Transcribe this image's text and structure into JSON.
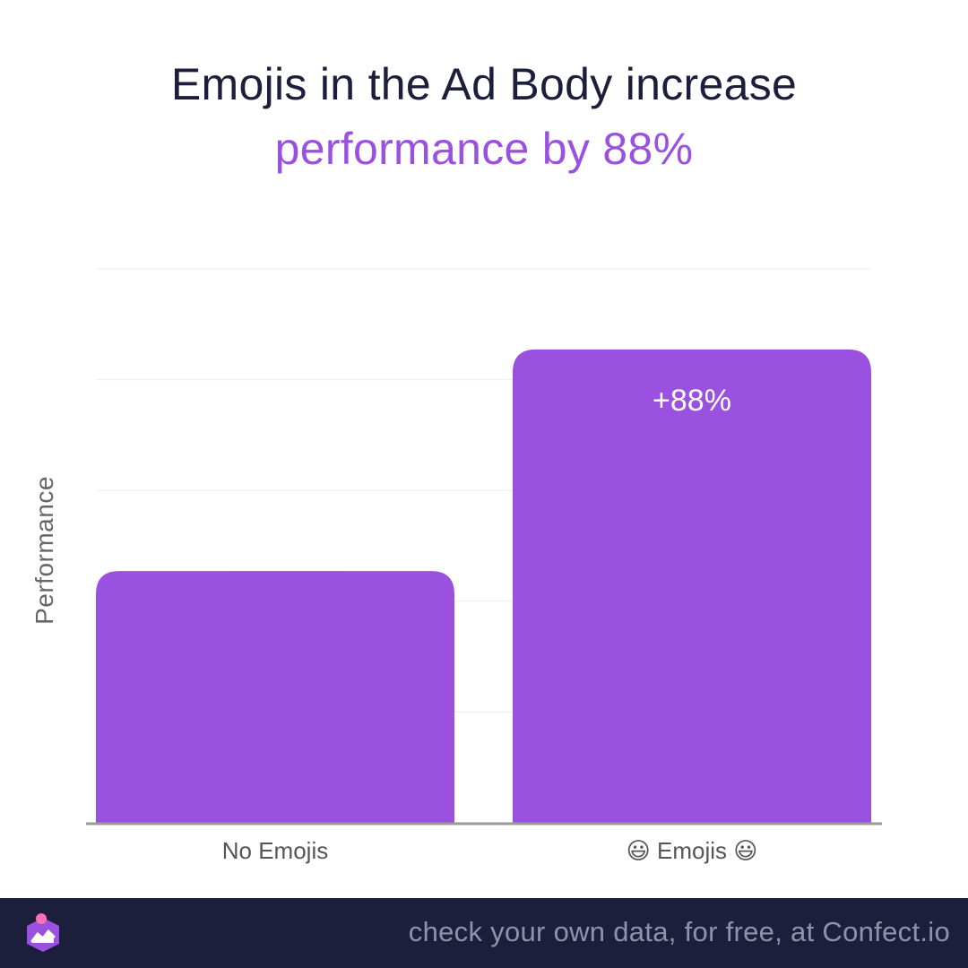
{
  "title": {
    "line1": "Emojis in the Ad Body increase",
    "line2": "performance by 88%"
  },
  "chart_data": {
    "type": "bar",
    "categories": [
      "No Emojis",
      "😃 Emojis 😃"
    ],
    "values": [
      1.0,
      1.88
    ],
    "data_labels": [
      "",
      "+88%"
    ],
    "ylabel": "Performance",
    "xlabel": "",
    "ylim": [
      0,
      2.2
    ],
    "grid": true,
    "bar_color": "#9b51e0",
    "title": "Emojis in the Ad Body increase performance by 88%"
  },
  "footer": {
    "text": "check your own data, for free, at Confect.io",
    "logo": "confect-logo-icon"
  },
  "colors": {
    "title_dark": "#1b1f3b",
    "accent": "#9b51e0",
    "footer_bg": "#1b1f3b",
    "footer_text": "#8f93a8",
    "axis": "#999999",
    "grid": "#eeeeee",
    "tick_text": "#555555"
  }
}
